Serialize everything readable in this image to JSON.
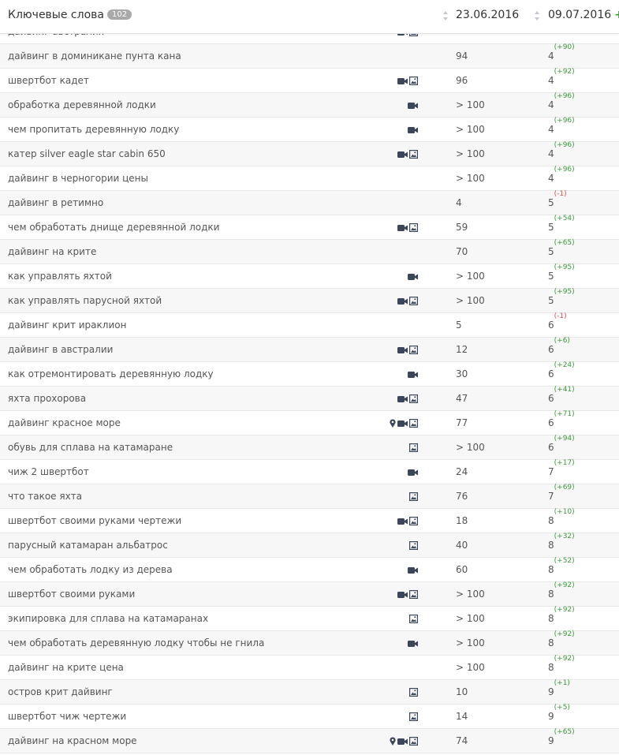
{
  "header": {
    "title": "Ключевые слова",
    "count": "102",
    "date_old": "23.06.2016",
    "date_new": "09.07.2016",
    "add": "+"
  },
  "table": {
    "rows": [
      {
        "keyword": "дайвинг австралия",
        "icons": [
          "video",
          "image"
        ]
      },
      {
        "keyword": "дайвинг в доминикане пунта кана",
        "icons": [],
        "old": 94,
        "new": 4,
        "delta": "(+90)",
        "trend": "up"
      },
      {
        "keyword": "швертбот кадет",
        "icons": [
          "video",
          "image"
        ],
        "old": 96,
        "new": 4,
        "delta": "(+92)",
        "trend": "up"
      },
      {
        "keyword": "обработка деревянной лодки",
        "icons": [
          "video"
        ],
        "old": "> 100",
        "new": 4,
        "delta": "(+96)",
        "trend": "up"
      },
      {
        "keyword": "чем пропитать деревянную лодку",
        "icons": [
          "video"
        ],
        "old": "> 100",
        "new": 4,
        "delta": "(+96)",
        "trend": "up"
      },
      {
        "keyword": "катер silver eagle star cabin 650",
        "icons": [
          "video",
          "image"
        ],
        "old": "> 100",
        "new": 4,
        "delta": "(+96)",
        "trend": "up"
      },
      {
        "keyword": "дайвинг в черногории цены",
        "icons": [],
        "old": "> 100",
        "new": 4,
        "delta": "(+96)",
        "trend": "up"
      },
      {
        "keyword": "дайвинг в ретимно",
        "icons": [],
        "old": 4,
        "new": 5,
        "delta": "(-1)",
        "trend": "down"
      },
      {
        "keyword": "чем обработать днище деревянной лодки",
        "icons": [
          "video",
          "image"
        ],
        "old": 59,
        "new": 5,
        "delta": "(+54)",
        "trend": "up"
      },
      {
        "keyword": "дайвинг на крите",
        "icons": [],
        "old": 70,
        "new": 5,
        "delta": "(+65)",
        "trend": "up"
      },
      {
        "keyword": "как управлять яхтой",
        "icons": [
          "video"
        ],
        "old": "> 100",
        "new": 5,
        "delta": "(+95)",
        "trend": "up"
      },
      {
        "keyword": "как управлять парусной яхтой",
        "icons": [
          "video",
          "image"
        ],
        "old": "> 100",
        "new": 5,
        "delta": "(+95)",
        "trend": "up"
      },
      {
        "keyword": "дайвинг крит ираклион",
        "icons": [],
        "old": 5,
        "new": 6,
        "delta": "(-1)",
        "trend": "down"
      },
      {
        "keyword": "дайвинг в австралии",
        "icons": [
          "video",
          "image"
        ],
        "old": 12,
        "new": 6,
        "delta": "(+6)",
        "trend": "up"
      },
      {
        "keyword": "как отремонтировать деревянную лодку",
        "icons": [
          "video"
        ],
        "old": 30,
        "new": 6,
        "delta": "(+24)",
        "trend": "up"
      },
      {
        "keyword": "яхта прохорова",
        "icons": [
          "video",
          "image"
        ],
        "old": 47,
        "new": 6,
        "delta": "(+41)",
        "trend": "up"
      },
      {
        "keyword": "дайвинг красное море",
        "icons": [
          "map",
          "video",
          "image"
        ],
        "old": 77,
        "new": 6,
        "delta": "(+71)",
        "trend": "up"
      },
      {
        "keyword": "обувь для сплава на катамаране",
        "icons": [
          "image"
        ],
        "old": "> 100",
        "new": 6,
        "delta": "(+94)",
        "trend": "up"
      },
      {
        "keyword": "чиж 2 швертбот",
        "icons": [
          "video"
        ],
        "old": 24,
        "new": 7,
        "delta": "(+17)",
        "trend": "up"
      },
      {
        "keyword": "что такое яхта",
        "icons": [
          "image"
        ],
        "old": 76,
        "new": 7,
        "delta": "(+69)",
        "trend": "up"
      },
      {
        "keyword": "швертбот своими руками чертежи",
        "icons": [
          "video",
          "image"
        ],
        "old": 18,
        "new": 8,
        "delta": "(+10)",
        "trend": "up"
      },
      {
        "keyword": "парусный катамаран альбатрос",
        "icons": [
          "image"
        ],
        "old": 40,
        "new": 8,
        "delta": "(+32)",
        "trend": "up"
      },
      {
        "keyword": "чем обработать лодку из дерева",
        "icons": [
          "video"
        ],
        "old": 60,
        "new": 8,
        "delta": "(+52)",
        "trend": "up"
      },
      {
        "keyword": "швертбот своими руками",
        "icons": [
          "video",
          "image"
        ],
        "old": "> 100",
        "new": 8,
        "delta": "(+92)",
        "trend": "up"
      },
      {
        "keyword": "экипировка для сплава на катамаранах",
        "icons": [
          "image"
        ],
        "old": "> 100",
        "new": 8,
        "delta": "(+92)",
        "trend": "up"
      },
      {
        "keyword": "чем обработать деревянную лодку чтобы не гнила",
        "icons": [
          "video"
        ],
        "old": "> 100",
        "new": 8,
        "delta": "(+92)",
        "trend": "up"
      },
      {
        "keyword": "дайвинг на крите цена",
        "icons": [],
        "old": "> 100",
        "new": 8,
        "delta": "(+92)",
        "trend": "up"
      },
      {
        "keyword": "остров крит дайвинг",
        "icons": [
          "image"
        ],
        "old": 10,
        "new": 9,
        "delta": "(+1)",
        "trend": "up"
      },
      {
        "keyword": "швертбот чиж чертежи",
        "icons": [
          "image"
        ],
        "old": 14,
        "new": 9,
        "delta": "(+5)",
        "trend": "up"
      },
      {
        "keyword": "дайвинг на красном море",
        "icons": [
          "map",
          "video",
          "image"
        ],
        "old": 74,
        "new": 9,
        "delta": "(+65)",
        "trend": "up"
      }
    ]
  }
}
